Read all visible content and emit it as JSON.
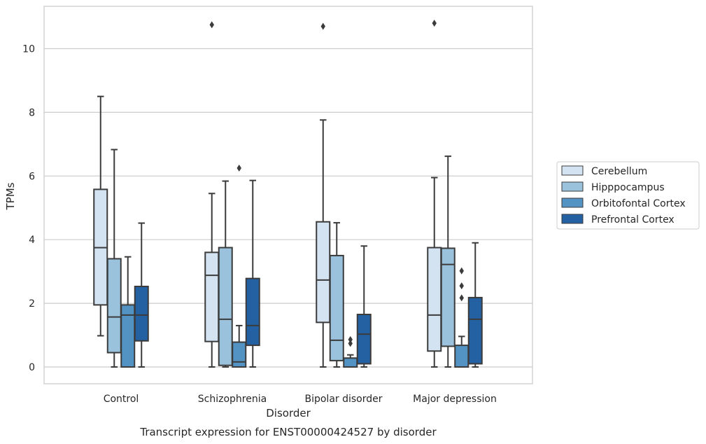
{
  "caption": "Transcript expression for ENST00000424527 by disorder",
  "chart_data": {
    "type": "box",
    "title": "",
    "xlabel": "Disorder",
    "ylabel": "TPMs",
    "ylim": [
      -0.5,
      11.4
    ],
    "yticks": [
      0,
      2,
      4,
      6,
      8,
      10
    ],
    "grid": "horizontal",
    "legend_position": "right",
    "categories": [
      "Control",
      "Schizophrenia",
      "Bipolar disorder",
      "Major depression"
    ],
    "series": [
      {
        "name": "Cerebellum",
        "color": "#d4e3f2",
        "boxes": [
          {
            "whislo": 0.98,
            "q1": 1.95,
            "med": 3.75,
            "q3": 5.58,
            "whishi": 8.5,
            "fliers": []
          },
          {
            "whislo": 0.0,
            "q1": 0.8,
            "med": 2.88,
            "q3": 3.6,
            "whishi": 5.45,
            "fliers": [
              10.75
            ]
          },
          {
            "whislo": 0.0,
            "q1": 1.4,
            "med": 2.73,
            "q3": 4.56,
            "whishi": 7.76,
            "fliers": [
              10.7
            ]
          },
          {
            "whislo": 0.0,
            "q1": 0.5,
            "med": 1.63,
            "q3": 3.75,
            "whishi": 5.95,
            "fliers": [
              10.8
            ]
          }
        ]
      },
      {
        "name": "Hipppocampus",
        "color": "#9ac2dc",
        "boxes": [
          {
            "whislo": 0.0,
            "q1": 0.45,
            "med": 1.57,
            "q3": 3.4,
            "whishi": 6.83,
            "fliers": []
          },
          {
            "whislo": 0.0,
            "q1": 0.05,
            "med": 1.5,
            "q3": 3.75,
            "whishi": 5.84,
            "fliers": []
          },
          {
            "whislo": 0.0,
            "q1": 0.2,
            "med": 0.84,
            "q3": 3.5,
            "whishi": 4.53,
            "fliers": []
          },
          {
            "whislo": 0.0,
            "q1": 0.65,
            "med": 3.22,
            "q3": 3.73,
            "whishi": 6.62,
            "fliers": []
          }
        ]
      },
      {
        "name": "Orbitofontal Cortex",
        "color": "#5293c3",
        "boxes": [
          {
            "whislo": 0.0,
            "q1": 0.0,
            "med": 1.63,
            "q3": 1.95,
            "whishi": 3.46,
            "fliers": []
          },
          {
            "whislo": 0.0,
            "q1": 0.0,
            "med": 0.16,
            "q3": 0.78,
            "whishi": 1.3,
            "fliers": [
              6.25
            ]
          },
          {
            "whislo": 0.0,
            "q1": 0.0,
            "med": 0.0,
            "q3": 0.28,
            "whishi": 0.38,
            "fliers": [
              0.74,
              0.86
            ]
          },
          {
            "whislo": 0.0,
            "q1": 0.0,
            "med": 0.0,
            "q3": 0.68,
            "whishi": 0.96,
            "fliers": [
              2.17,
              2.55,
              3.02
            ]
          }
        ]
      },
      {
        "name": "Prefrontal Cortex",
        "color": "#2461a3",
        "boxes": [
          {
            "whislo": 0.0,
            "q1": 0.82,
            "med": 1.63,
            "q3": 2.53,
            "whishi": 4.52,
            "fliers": []
          },
          {
            "whislo": 0.0,
            "q1": 0.68,
            "med": 1.3,
            "q3": 2.78,
            "whishi": 5.86,
            "fliers": []
          },
          {
            "whislo": 0.0,
            "q1": 0.1,
            "med": 1.03,
            "q3": 1.65,
            "whishi": 3.8,
            "fliers": []
          },
          {
            "whislo": 0.0,
            "q1": 0.1,
            "med": 1.5,
            "q3": 2.18,
            "whishi": 3.9,
            "fliers": []
          }
        ]
      }
    ]
  }
}
